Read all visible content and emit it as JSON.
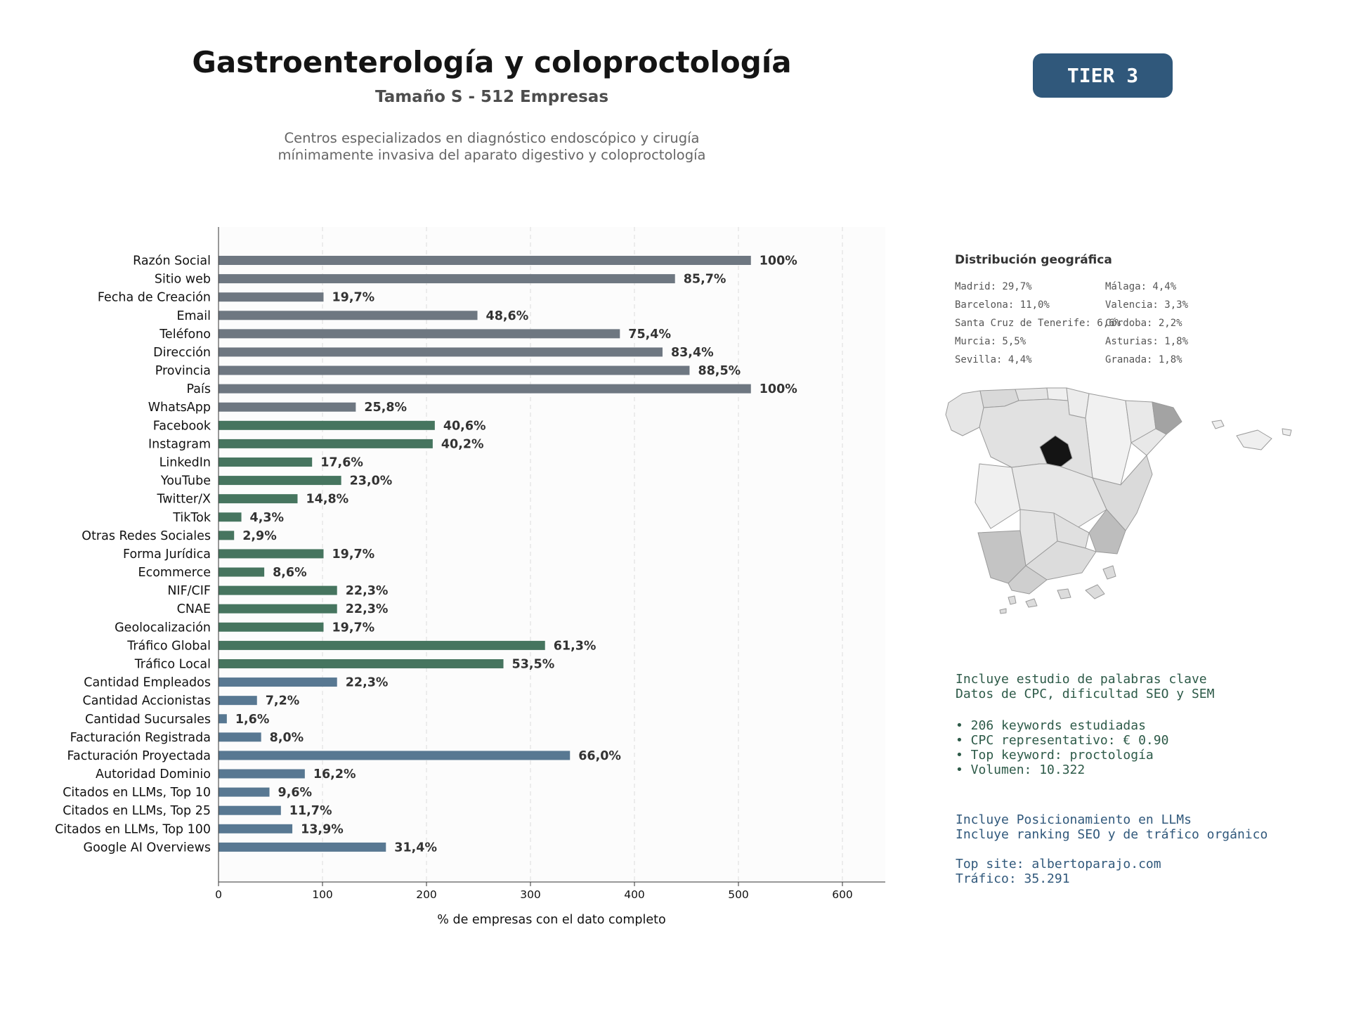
{
  "header": {
    "title": "Gastroenterología y coloproctología",
    "subtitle": "Tamaño S - 512 Empresas",
    "description": [
      "Centros especializados en diagnóstico endoscópico y cirugía",
      "mínimamente invasiva del aparato digestivo y coloproctología"
    ],
    "tier_badge": "TIER 3"
  },
  "colors": {
    "gray": "#6e7781",
    "green": "#46755f",
    "blue": "#587892",
    "badge": "#30587b"
  },
  "chart_data": {
    "type": "bar",
    "orientation": "horizontal",
    "xlabel": "% de empresas con el dato completo",
    "xlim": [
      0,
      640
    ],
    "xticks": [
      0,
      100,
      200,
      300,
      400,
      500,
      600
    ],
    "grid": "vertical dashed",
    "categories": [
      "Razón Social",
      "Sitio web",
      "Fecha de Creación",
      "Email",
      "Teléfono",
      "Dirección",
      "Provincia",
      "País",
      "WhatsApp",
      "Facebook",
      "Instagram",
      "LinkedIn",
      "YouTube",
      "Twitter/X",
      "TikTok",
      "Otras Redes Sociales",
      "Forma Jurídica",
      "Ecommerce",
      "NIF/CIF",
      "CNAE",
      "Geolocalización",
      "Tráfico Global",
      "Tráfico Local",
      "Cantidad Empleados",
      "Cantidad Accionistas",
      "Cantidad Sucursales",
      "Facturación Registrada",
      "Facturación Proyectada",
      "Autoridad Dominio",
      "Citados en LLMs, Top 10",
      "Citados en LLMs, Top 25",
      "Citados en LLMs, Top 100",
      "Google AI Overviews"
    ],
    "values": [
      512,
      439,
      101,
      249,
      386,
      427,
      453,
      512,
      132,
      208,
      206,
      90,
      118,
      76,
      22,
      15,
      101,
      44,
      114,
      114,
      101,
      314,
      274,
      114,
      37,
      8,
      41,
      338,
      83,
      49,
      60,
      71,
      161
    ],
    "labels": [
      "100%",
      "85,7%",
      "19,7%",
      "48,6%",
      "75,4%",
      "83,4%",
      "88,5%",
      "100%",
      "25,8%",
      "40,6%",
      "40,2%",
      "17,6%",
      "23,0%",
      "14,8%",
      "4,3%",
      "2,9%",
      "19,7%",
      "8,6%",
      "22,3%",
      "22,3%",
      "19,7%",
      "61,3%",
      "53,5%",
      "22,3%",
      "7,2%",
      "1,6%",
      "8,0%",
      "66,0%",
      "16,2%",
      "9,6%",
      "11,7%",
      "13,9%",
      "31,4%"
    ],
    "groups": [
      "gray",
      "gray",
      "gray",
      "gray",
      "gray",
      "gray",
      "gray",
      "gray",
      "gray",
      "green",
      "green",
      "green",
      "green",
      "green",
      "green",
      "green",
      "green",
      "green",
      "green",
      "green",
      "green",
      "green",
      "green",
      "blue",
      "blue",
      "blue",
      "blue",
      "blue",
      "blue",
      "blue",
      "blue",
      "blue",
      "blue"
    ]
  },
  "geo": {
    "title": "Distribución geográfica",
    "items": [
      "Madrid: 29,7%",
      "Barcelona: 11,0%",
      "Santa Cruz de Tenerife: 6,6%",
      "Murcia: 5,5%",
      "Sevilla: 4,4%",
      "Málaga: 4,4%",
      "Valencia: 3,3%",
      "Córdoba: 2,2%",
      "Asturias: 1,8%",
      "Granada: 1,8%"
    ]
  },
  "keywords": {
    "line1": "Incluye estudio de palabras clave",
    "line2": "Datos de CPC, dificultad SEO y SEM",
    "bullet1": "• 206 keywords estudiadas",
    "bullet2": "• CPC representativo: € 0.90",
    "bullet3": "• Top keyword: proctología",
    "bullet4": "• Volumen: 10.322"
  },
  "llm": {
    "line1": "Incluye Posicionamiento en LLMs",
    "line2": "Incluye ranking SEO y de tráfico orgánico",
    "line3": "Top site: albertoparajo.com",
    "line4": "Tráfico: 35.291"
  }
}
